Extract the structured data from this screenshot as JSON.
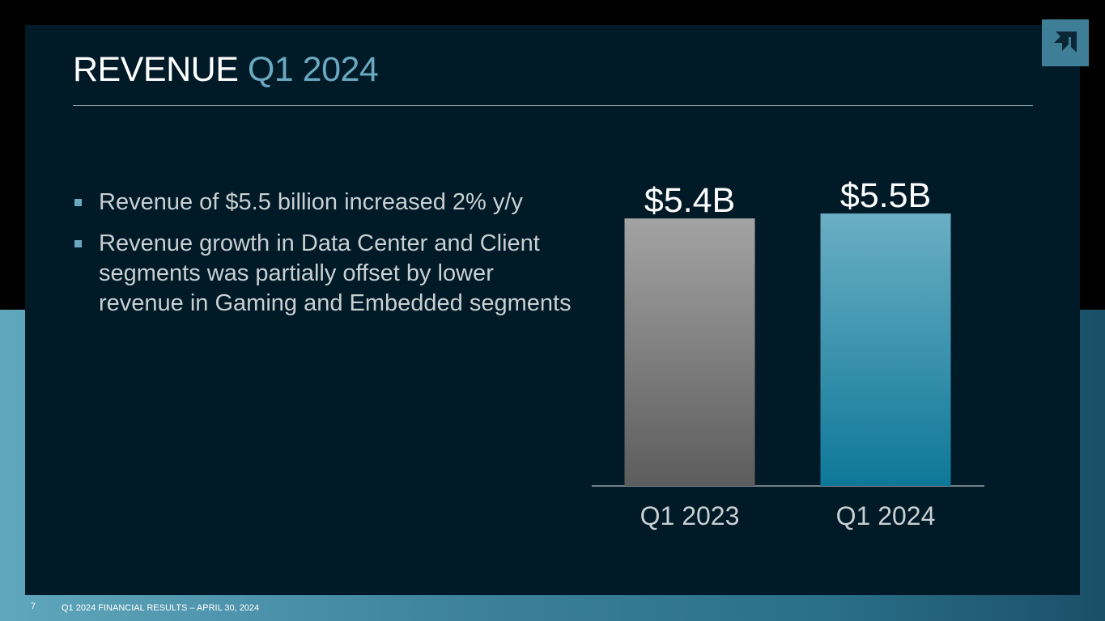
{
  "slide": {
    "title_main": "REVENUE",
    "title_accent": "Q1 2024",
    "bullets": [
      "Revenue of $5.5 billion increased 2% y/y",
      "Revenue growth in Data Center and Client segments was partially offset by lower revenue in Gaming and Embedded segments"
    ],
    "footer": {
      "page_number": "7",
      "text": "Q1 2024 FINANCIAL RESULTS – APRIL 30, 2024"
    },
    "logo_icon": "amd-logo-icon"
  },
  "colors": {
    "background": "#001a27",
    "accent": "#6aa9c0",
    "bar_2023_top": "#a3a3a3",
    "bar_2023_bottom": "#5c5c5c",
    "bar_2024_top": "#6aaec4",
    "bar_2024_bottom": "#0e7898"
  },
  "chart_data": {
    "type": "bar",
    "title": "",
    "xlabel": "",
    "ylabel": "",
    "categories": [
      "Q1 2023",
      "Q1 2024"
    ],
    "values": [
      5.4,
      5.5
    ],
    "data_labels": [
      "$5.4B",
      "$5.5B"
    ],
    "ylim": [
      0,
      5.5
    ],
    "grid": false,
    "legend": "none"
  }
}
